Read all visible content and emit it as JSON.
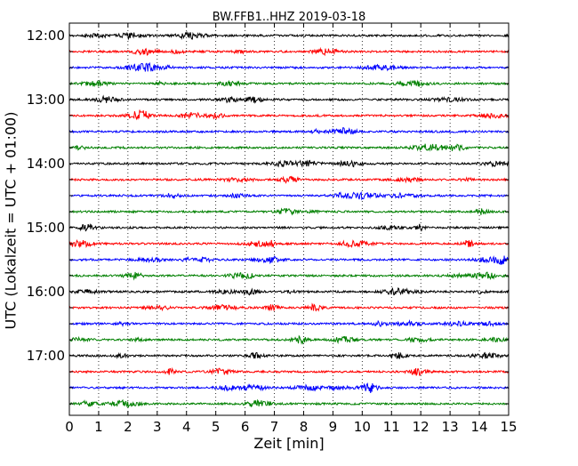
{
  "chart_data": {
    "type": "line",
    "title": "BW.FFB1..HHZ 2019-03-18",
    "xlabel": "Zeit  [min]",
    "ylabel": "UTC (Lokalzeit = UTC + 01:00)",
    "xlim": [
      0,
      15
    ],
    "x_ticks": [
      "0",
      "1",
      "2",
      "3",
      "4",
      "5",
      "6",
      "7",
      "8",
      "9",
      "10",
      "11",
      "12",
      "13",
      "14",
      "15"
    ],
    "y_ticks": [
      "12:00",
      "13:00",
      "14:00",
      "15:00",
      "16:00",
      "17:00"
    ],
    "grid": "vertical dotted",
    "trace_colors": [
      "#000000",
      "#ff0000",
      "#0000ff",
      "#008000"
    ],
    "traces": [
      {
        "start": "12:00",
        "color": "#000000"
      },
      {
        "start": "12:15",
        "color": "#ff0000"
      },
      {
        "start": "12:30",
        "color": "#0000ff"
      },
      {
        "start": "12:45",
        "color": "#008000"
      },
      {
        "start": "13:00",
        "color": "#000000"
      },
      {
        "start": "13:15",
        "color": "#ff0000"
      },
      {
        "start": "13:30",
        "color": "#0000ff"
      },
      {
        "start": "13:45",
        "color": "#008000"
      },
      {
        "start": "14:00",
        "color": "#000000"
      },
      {
        "start": "14:15",
        "color": "#ff0000"
      },
      {
        "start": "14:30",
        "color": "#0000ff"
      },
      {
        "start": "14:45",
        "color": "#008000"
      },
      {
        "start": "15:00",
        "color": "#000000"
      },
      {
        "start": "15:15",
        "color": "#ff0000"
      },
      {
        "start": "15:30",
        "color": "#0000ff"
      },
      {
        "start": "15:45",
        "color": "#008000"
      },
      {
        "start": "16:00",
        "color": "#000000"
      },
      {
        "start": "16:15",
        "color": "#ff0000"
      },
      {
        "start": "16:30",
        "color": "#0000ff"
      },
      {
        "start": "16:45",
        "color": "#008000"
      },
      {
        "start": "17:00",
        "color": "#000000"
      },
      {
        "start": "17:15",
        "color": "#ff0000"
      },
      {
        "start": "17:30",
        "color": "#0000ff"
      },
      {
        "start": "17:45",
        "color": "#008000"
      }
    ]
  }
}
